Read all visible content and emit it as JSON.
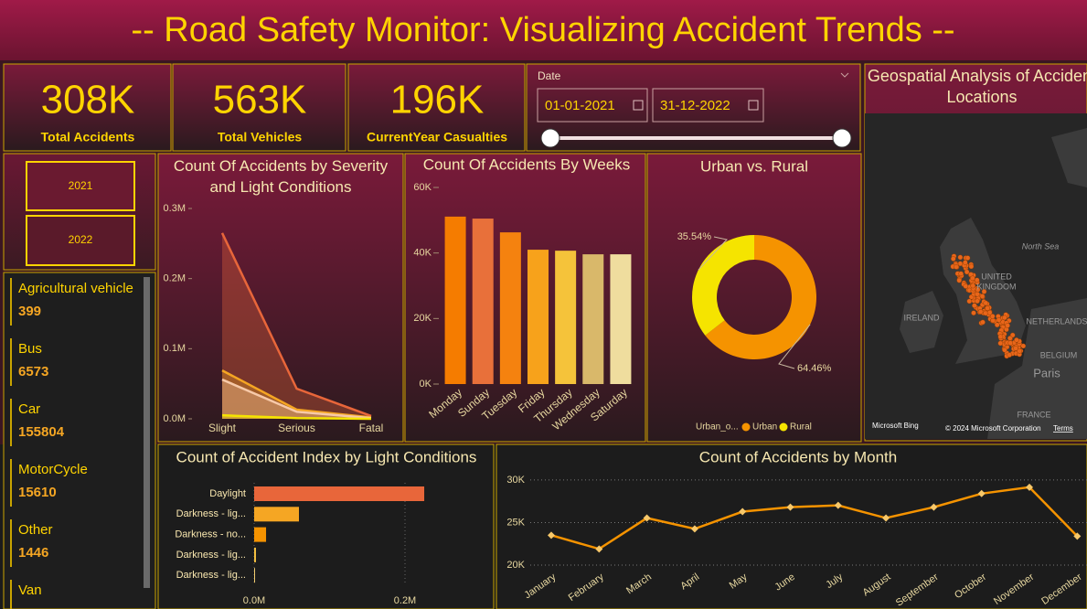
{
  "header": {
    "title": "-- Road Safety Monitor: Visualizing Accident Trends --"
  },
  "kpis": [
    {
      "value": "308K",
      "label": "Total Accidents"
    },
    {
      "value": "563K",
      "label": "Total Vehicles"
    },
    {
      "value": "196K",
      "label": "CurrentYear Casualties"
    }
  ],
  "date_filter": {
    "label": "Date",
    "start": "01-01-2021",
    "end": "31-12-2022"
  },
  "year_filter": [
    "2021",
    "2022"
  ],
  "vehicle_types": [
    {
      "name": "Agricultural vehicle",
      "value": "399"
    },
    {
      "name": "Bus",
      "value": "6573"
    },
    {
      "name": "Car",
      "value": "155804"
    },
    {
      "name": "MotorCycle",
      "value": "15610"
    },
    {
      "name": "Other",
      "value": "1446"
    },
    {
      "name": "Van"
    }
  ],
  "map": {
    "title": "Geospatial Analysis of Accident Locations",
    "labels": [
      "North Sea",
      "UNITED",
      "KINGDOM",
      "IRELAND",
      "NETHERLANDS",
      "BELGIUM",
      "Paris",
      "FRANCE"
    ],
    "provider": "Microsoft Bing",
    "copyright": "© 2024 Microsoft Corporation",
    "terms": "Terms"
  },
  "chart_data": [
    {
      "type": "area",
      "title": "Count Of Accidents by Severity and Light Conditions",
      "categories": [
        "Slight",
        "Serious",
        "Fatal"
      ],
      "series": [
        {
          "color": "#e8663a",
          "values": [
            265000,
            43000,
            4000
          ]
        },
        {
          "color": "#f5a623",
          "values": [
            69000,
            13000,
            2000
          ]
        },
        {
          "color": "#f7c9a8",
          "values": [
            56000,
            10000,
            1000
          ]
        },
        {
          "color": "#f5e400",
          "values": [
            5000,
            1000,
            0
          ]
        }
      ],
      "ylim": [
        0,
        300000
      ],
      "yticks": [
        {
          "value": 0,
          "label": "0.0M"
        },
        {
          "value": 100000,
          "label": "0.1M"
        },
        {
          "value": 200000,
          "label": "0.2M"
        },
        {
          "value": 300000,
          "label": "0.3M"
        }
      ],
      "grid": false
    },
    {
      "type": "bar",
      "title": "Count Of Accidents By Weeks",
      "categories": [
        "Monday",
        "Sunday",
        "Tuesday",
        "Friday",
        "Thursday",
        "Wednesday",
        "Saturday"
      ],
      "values": [
        51100,
        50500,
        46300,
        41000,
        40700,
        39600,
        39600
      ],
      "colors": [
        "#f57c00",
        "#e8703a",
        "#f5820f",
        "#f7a21b",
        "#f5c33a",
        "#d9b86a",
        "#efdd9e"
      ],
      "ylim": [
        0,
        60000
      ],
      "yticks": [
        {
          "value": 0,
          "label": "0K"
        },
        {
          "value": 20000,
          "label": "20K"
        },
        {
          "value": 40000,
          "label": "40K"
        },
        {
          "value": 60000,
          "label": "60K"
        }
      ],
      "grid": false
    },
    {
      "type": "donut",
      "title": "Urban vs. Rural",
      "categories": [
        "Urban",
        "Rural"
      ],
      "values": [
        64.46,
        35.54
      ],
      "value_labels": [
        "64.46%",
        "35.54%"
      ],
      "colors": [
        "#f59300",
        "#f5e400"
      ],
      "legend_title": "Urban_o..."
    },
    {
      "type": "bar",
      "orientation": "horizontal",
      "title": "Count of Accident Index by Light Conditions",
      "categories": [
        "Daylight",
        "Darkness - lig...",
        "Darkness - no...",
        "Darkness - lig...",
        "Darkness - lig..."
      ],
      "values": [
        225500,
        59400,
        15800,
        2400,
        1200
      ],
      "colors": [
        "#e8663a",
        "#f5a623",
        "#f59300",
        "#f5c040",
        "#f5d070"
      ],
      "xlim": [
        0,
        300000
      ],
      "xticks": [
        {
          "value": 0,
          "label": "0.0M"
        },
        {
          "value": 200000,
          "label": "0.2M"
        }
      ],
      "grid": true
    },
    {
      "type": "line",
      "title": "Count of Accidents by Month",
      "categories": [
        "January",
        "February",
        "March",
        "April",
        "May",
        "June",
        "July",
        "August",
        "September",
        "October",
        "November",
        "December"
      ],
      "values": [
        23510,
        21900,
        25530,
        24260,
        26280,
        26810,
        27020,
        25530,
        26810,
        28400,
        29150,
        23400
      ],
      "color": "#f59300",
      "marker_color": "#f7c86a",
      "ylim": [
        20000,
        31000
      ],
      "yticks": [
        {
          "value": 20000,
          "label": "20K"
        },
        {
          "value": 25000,
          "label": "25K"
        },
        {
          "value": 30000,
          "label": "30K"
        }
      ],
      "grid": true
    }
  ]
}
